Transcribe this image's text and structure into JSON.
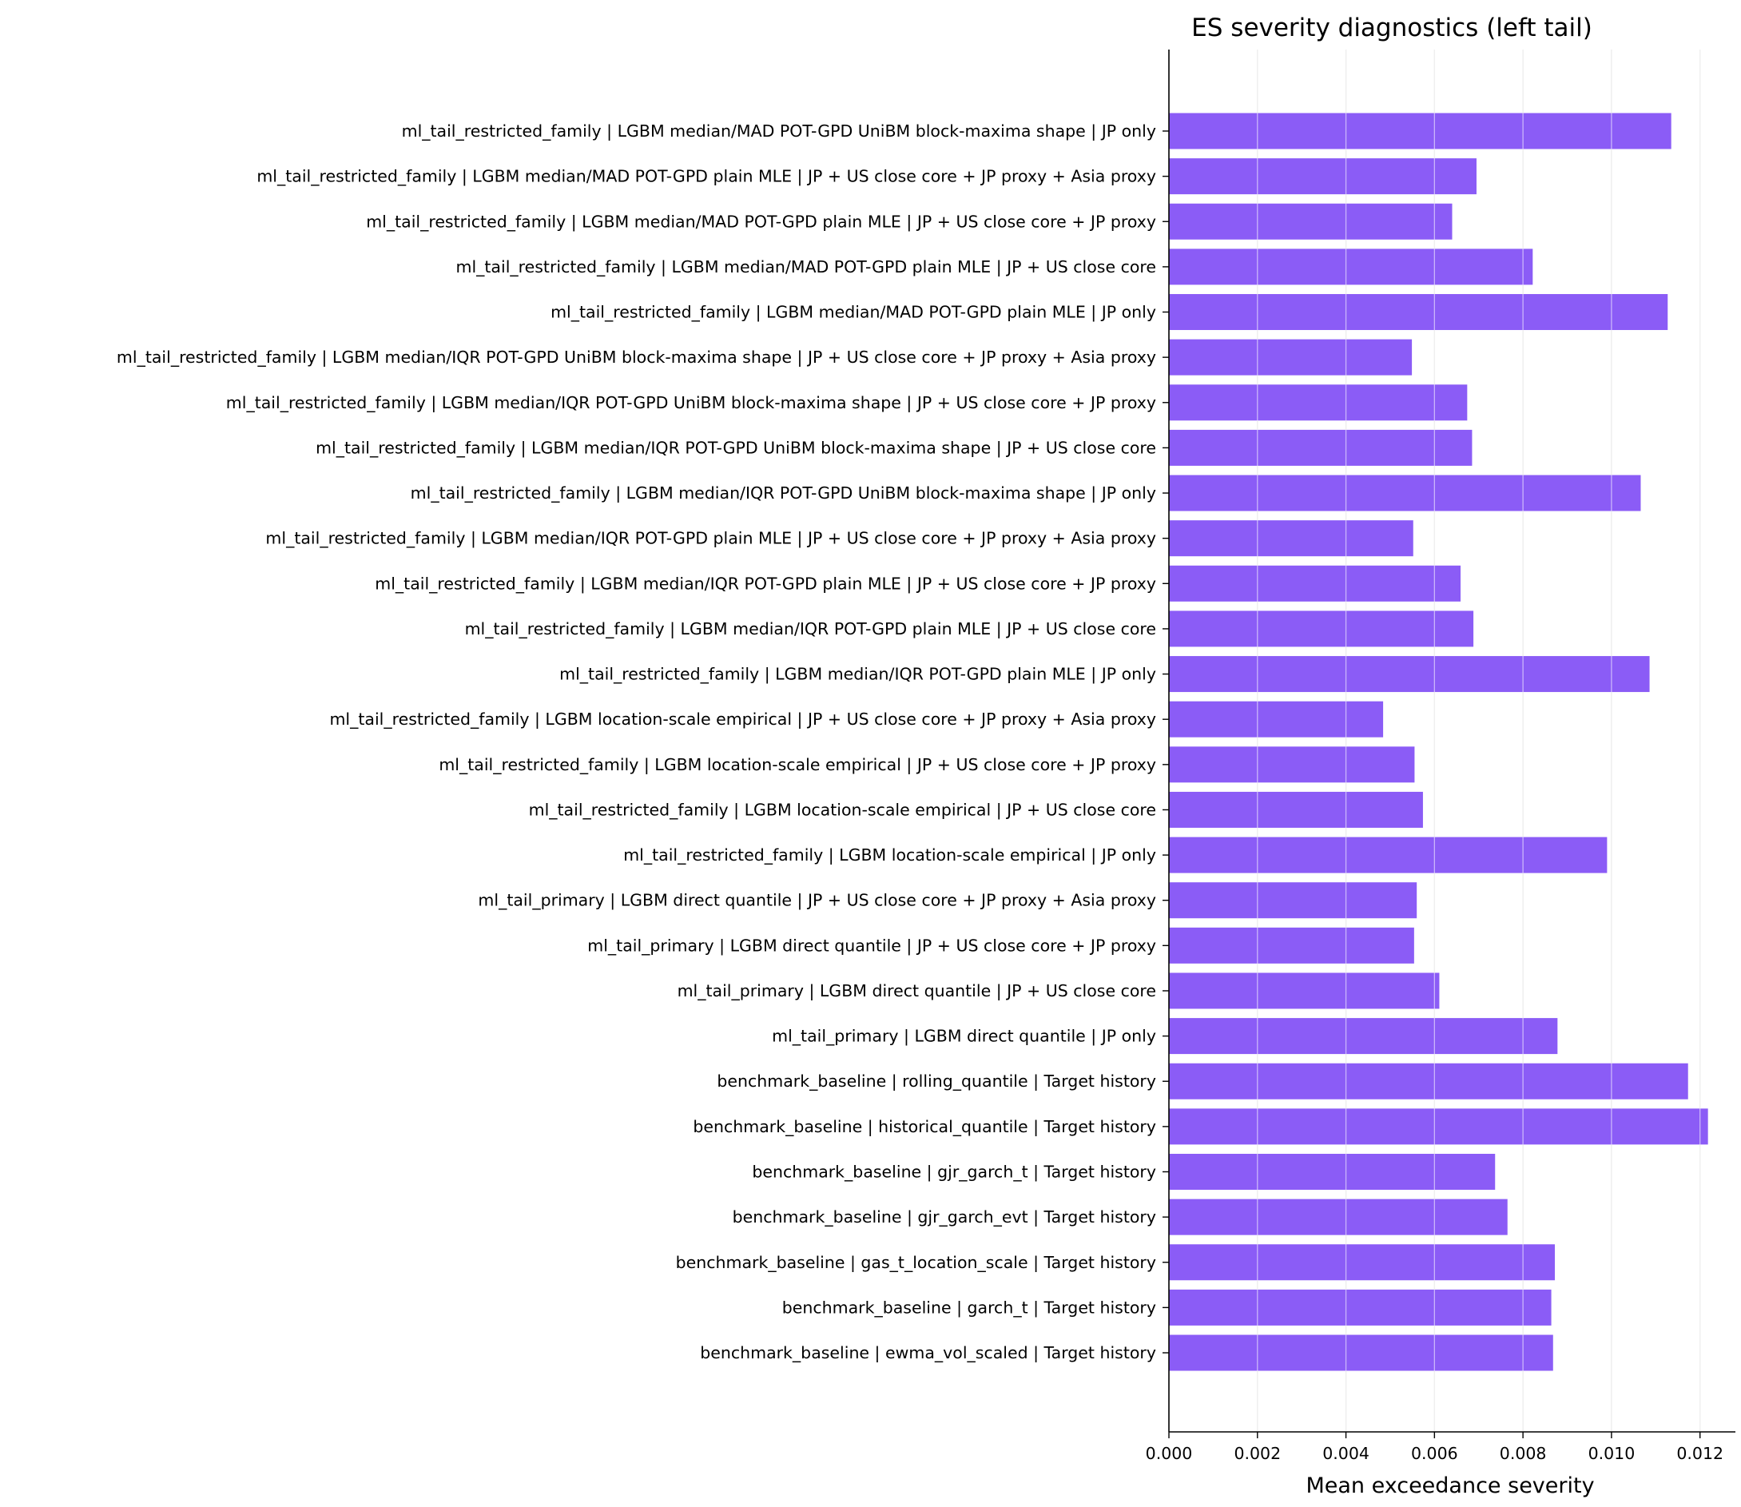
{
  "chart_data": {
    "type": "bar",
    "orientation": "horizontal",
    "title": "ES severity diagnostics (left tail)",
    "xlabel": "Mean exceedance severity",
    "ylabel": "",
    "xlim": [
      0,
      0.0128
    ],
    "xticks": [
      "0.000",
      "0.002",
      "0.004",
      "0.006",
      "0.008",
      "0.010",
      "0.012"
    ],
    "grid": "vertical",
    "bar_color": "#8b5cf6",
    "categories": [
      "ml_tail_restricted_family | LGBM median/MAD POT-GPD UniBM block-maxima shape | JP only",
      "ml_tail_restricted_family | LGBM median/MAD POT-GPD plain MLE | JP + US close core + JP proxy + Asia proxy",
      "ml_tail_restricted_family | LGBM median/MAD POT-GPD plain MLE | JP + US close core + JP proxy",
      "ml_tail_restricted_family | LGBM median/MAD POT-GPD plain MLE | JP + US close core",
      "ml_tail_restricted_family | LGBM median/MAD POT-GPD plain MLE | JP only",
      "ml_tail_restricted_family | LGBM median/IQR POT-GPD UniBM block-maxima shape | JP + US close core + JP proxy + Asia proxy",
      "ml_tail_restricted_family | LGBM median/IQR POT-GPD UniBM block-maxima shape | JP + US close core + JP proxy",
      "ml_tail_restricted_family | LGBM median/IQR POT-GPD UniBM block-maxima shape | JP + US close core",
      "ml_tail_restricted_family | LGBM median/IQR POT-GPD UniBM block-maxima shape | JP only",
      "ml_tail_restricted_family | LGBM median/IQR POT-GPD plain MLE | JP + US close core + JP proxy + Asia proxy",
      "ml_tail_restricted_family | LGBM median/IQR POT-GPD plain MLE | JP + US close core + JP proxy",
      "ml_tail_restricted_family | LGBM median/IQR POT-GPD plain MLE | JP + US close core",
      "ml_tail_restricted_family | LGBM median/IQR POT-GPD plain MLE | JP only",
      "ml_tail_restricted_family | LGBM location-scale empirical | JP + US close core + JP proxy + Asia proxy",
      "ml_tail_restricted_family | LGBM location-scale empirical | JP + US close core + JP proxy",
      "ml_tail_restricted_family | LGBM location-scale empirical | JP + US close core",
      "ml_tail_restricted_family | LGBM location-scale empirical | JP only",
      "ml_tail_primary | LGBM direct quantile | JP + US close core + JP proxy + Asia proxy",
      "ml_tail_primary | LGBM direct quantile | JP + US close core + JP proxy",
      "ml_tail_primary | LGBM direct quantile | JP + US close core",
      "ml_tail_primary | LGBM direct quantile | JP only",
      "benchmark_baseline | rolling_quantile | Target history",
      "benchmark_baseline | historical_quantile | Target history",
      "benchmark_baseline | gjr_garch_t | Target history",
      "benchmark_baseline | gjr_garch_evt | Target history",
      "benchmark_baseline | gas_t_location_scale | Target history",
      "benchmark_baseline | garch_t | Target history",
      "benchmark_baseline | ewma_vol_scaled | Target history"
    ],
    "values": [
      0.01135,
      0.00695,
      0.0064,
      0.00822,
      0.01127,
      0.00549,
      0.00674,
      0.00685,
      0.01066,
      0.00552,
      0.00659,
      0.00688,
      0.01086,
      0.00484,
      0.00555,
      0.00574,
      0.0099,
      0.0056,
      0.00554,
      0.00611,
      0.00878,
      0.01173,
      0.01218,
      0.00737,
      0.00765,
      0.00872,
      0.00864,
      0.00868
    ]
  }
}
